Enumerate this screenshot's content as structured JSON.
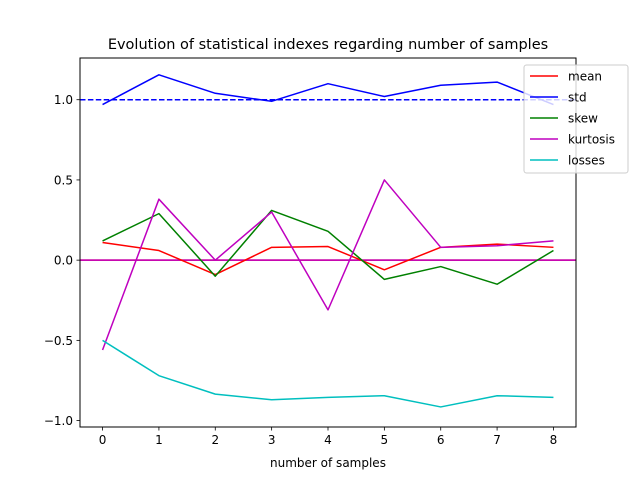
{
  "chart_data": {
    "type": "line",
    "title": "Evolution of statistical indexes regarding number of samples",
    "xlabel": "number of samples",
    "ylabel": "",
    "xlim": [
      -0.4,
      8.4
    ],
    "ylim": [
      -1.04,
      1.26
    ],
    "x": [
      0,
      1,
      2,
      3,
      4,
      5,
      6,
      7,
      8
    ],
    "xticks": [
      "0",
      "1",
      "2",
      "3",
      "4",
      "5",
      "6",
      "7",
      "8"
    ],
    "yticks": [
      1.0,
      0.5,
      0.0,
      -0.5,
      -1.0
    ],
    "ytick_labels": [
      "1.0",
      "0.5",
      "0.0",
      "−0.5",
      "−1.0"
    ],
    "grid": false,
    "legend_position": "top-right",
    "series": [
      {
        "name": "mean",
        "color": "#ff0000",
        "values": [
          0.11,
          0.06,
          -0.09,
          0.08,
          0.085,
          -0.06,
          0.08,
          0.1,
          0.08
        ]
      },
      {
        "name": "std",
        "color": "#0000ff",
        "values": [
          0.97,
          1.155,
          1.04,
          0.99,
          1.1,
          1.02,
          1.09,
          1.11,
          0.97
        ]
      },
      {
        "name": "skew",
        "color": "#008000",
        "values": [
          0.12,
          0.29,
          -0.1,
          0.31,
          0.18,
          -0.12,
          -0.04,
          -0.15,
          0.06
        ]
      },
      {
        "name": "kurtosis",
        "color": "#bf00bf",
        "values": [
          -0.56,
          0.38,
          0.0,
          0.3,
          -0.31,
          0.5,
          0.08,
          0.09,
          0.12
        ]
      },
      {
        "name": "losses",
        "color": "#00bfbf",
        "values": [
          -0.5,
          -0.72,
          -0.835,
          -0.87,
          -0.855,
          -0.845,
          -0.915,
          -0.845,
          -0.855
        ]
      }
    ],
    "reference_lines": [
      {
        "y": 1.0,
        "color": "#0000ff",
        "style": "dashed"
      },
      {
        "y": 0.0,
        "color": "#ff0000",
        "style": "solid"
      },
      {
        "y": 0.0,
        "color": "#bf00bf",
        "style": "solid"
      }
    ]
  }
}
